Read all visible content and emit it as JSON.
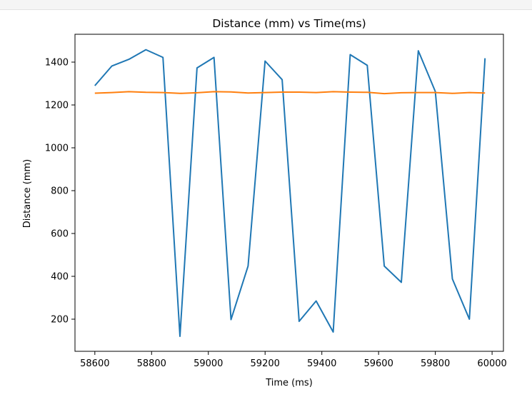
{
  "chart_data": {
    "type": "line",
    "title": "Distance (mm) vs Time(ms)",
    "xlabel": "Time (ms)",
    "ylabel": "Distance (mm)",
    "xlim": [
      58530,
      60040
    ],
    "ylim": [
      50,
      1530
    ],
    "x_ticks": [
      58600,
      58800,
      59000,
      59200,
      59400,
      59600,
      59800,
      60000
    ],
    "y_ticks": [
      200,
      400,
      600,
      800,
      1000,
      1200,
      1400
    ],
    "grid": false,
    "series": [
      {
        "color": "#1f77b4",
        "x": [
          58600,
          58660,
          58720,
          58780,
          58840,
          58900,
          58960,
          59020,
          59080,
          59140,
          59200,
          59260,
          59320,
          59380,
          59440,
          59500,
          59560,
          59620,
          59680,
          59740,
          59800,
          59860,
          59920,
          59975
        ],
        "y": [
          1290,
          1382,
          1413,
          1458,
          1422,
          120,
          1373,
          1422,
          198,
          448,
          1405,
          1318,
          190,
          285,
          140,
          1435,
          1385,
          448,
          372,
          1453,
          1263,
          388,
          200,
          1418
        ]
      },
      {
        "color": "#ff7f0e",
        "x": [
          58600,
          58660,
          58720,
          58780,
          58840,
          58900,
          58960,
          59020,
          59080,
          59140,
          59200,
          59260,
          59320,
          59380,
          59440,
          59500,
          59560,
          59620,
          59680,
          59740,
          59800,
          59860,
          59920,
          59975
        ],
        "y": [
          1255,
          1258,
          1262,
          1259,
          1258,
          1254,
          1257,
          1262,
          1261,
          1256,
          1258,
          1260,
          1260,
          1258,
          1262,
          1260,
          1259,
          1253,
          1257,
          1258,
          1258,
          1254,
          1258,
          1256
        ]
      }
    ]
  }
}
